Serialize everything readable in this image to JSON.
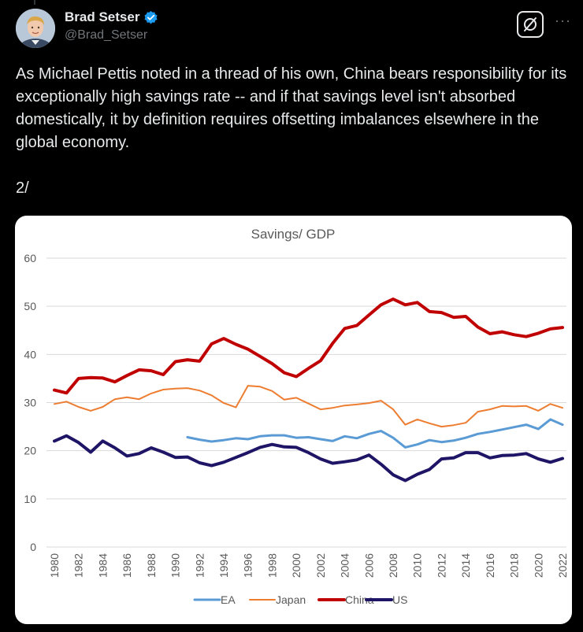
{
  "tweet": {
    "author_name": "Brad Setser",
    "author_handle": "@Brad_Setser",
    "text": "As Michael Pettis noted in a thread of his own, China bears responsibility for its exceptionally high savings rate -- and if that savings level isn't absorbed domestically, it by definition requires offsetting imbalances elsewhere in the global economy.\n\n2/",
    "verified_color": "#1d9bf0",
    "more_label": "···"
  },
  "chart_data": {
    "type": "line",
    "title": "Savings/ GDP",
    "xlabel": "",
    "ylabel": "",
    "ylim": [
      0,
      60
    ],
    "yticks": [
      0,
      10,
      20,
      30,
      40,
      50,
      60
    ],
    "xlim": [
      1980,
      2022
    ],
    "xticks": [
      "1980",
      "1982",
      "1984",
      "1986",
      "1988",
      "1990",
      "1992",
      "1994",
      "1996",
      "1998",
      "2000",
      "2002",
      "2004",
      "2006",
      "2008",
      "2010",
      "2012",
      "2014",
      "2016",
      "2018",
      "2020",
      "2022"
    ],
    "grid": true,
    "legend_position": "bottom",
    "series": [
      {
        "name": "EA",
        "color": "#5b9bd5",
        "width": 3,
        "x": [
          1991,
          1992,
          1993,
          1994,
          1995,
          1996,
          1997,
          1998,
          1999,
          2000,
          2001,
          2002,
          2003,
          2004,
          2005,
          2006,
          2007,
          2008,
          2009,
          2010,
          2011,
          2012,
          2013,
          2014,
          2015,
          2016,
          2017,
          2018,
          2019,
          2020,
          2021,
          2022
        ],
        "values": [
          22.8,
          22.3,
          21.9,
          22.2,
          22.6,
          22.4,
          23.0,
          23.2,
          23.2,
          22.7,
          22.8,
          22.4,
          22.0,
          23.0,
          22.6,
          23.5,
          24.1,
          22.7,
          20.7,
          21.3,
          22.2,
          21.8,
          22.1,
          22.7,
          23.5,
          23.9,
          24.4,
          24.9,
          25.4,
          24.5,
          26.5,
          25.4
        ]
      },
      {
        "name": "Japan",
        "color": "#ed7d31",
        "width": 2,
        "x": [
          1980,
          1981,
          1982,
          1983,
          1984,
          1985,
          1986,
          1987,
          1988,
          1989,
          1990,
          1991,
          1992,
          1993,
          1994,
          1995,
          1996,
          1997,
          1998,
          1999,
          2000,
          2001,
          2002,
          2003,
          2004,
          2005,
          2006,
          2007,
          2008,
          2009,
          2010,
          2011,
          2012,
          2013,
          2014,
          2015,
          2016,
          2017,
          2018,
          2019,
          2020,
          2021,
          2022
        ],
        "values": [
          29.7,
          30.2,
          29.1,
          28.3,
          29.1,
          30.7,
          31.1,
          30.7,
          31.9,
          32.7,
          32.9,
          33.0,
          32.5,
          31.5,
          29.9,
          29.0,
          33.5,
          33.3,
          32.4,
          30.6,
          31.0,
          29.8,
          28.6,
          28.9,
          29.4,
          29.6,
          29.9,
          30.4,
          28.6,
          25.4,
          26.5,
          25.7,
          25.0,
          25.3,
          25.8,
          28.1,
          28.6,
          29.3,
          29.2,
          29.3,
          28.3,
          29.7,
          28.9
        ]
      },
      {
        "name": "China",
        "color": "#c00000",
        "width": 4,
        "x": [
          1980,
          1981,
          1982,
          1983,
          1984,
          1985,
          1986,
          1987,
          1988,
          1989,
          1990,
          1991,
          1992,
          1993,
          1994,
          1995,
          1996,
          1997,
          1998,
          1999,
          2000,
          2001,
          2002,
          2003,
          2004,
          2005,
          2006,
          2007,
          2008,
          2009,
          2010,
          2011,
          2012,
          2013,
          2014,
          2015,
          2016,
          2017,
          2018,
          2019,
          2020,
          2021,
          2022
        ],
        "values": [
          32.6,
          32.0,
          35.0,
          35.2,
          35.1,
          34.3,
          35.6,
          36.8,
          36.6,
          35.8,
          38.5,
          38.9,
          38.6,
          42.2,
          43.3,
          42.1,
          41.1,
          39.6,
          38.1,
          36.2,
          35.4,
          37.1,
          38.7,
          42.3,
          45.4,
          46.0,
          48.2,
          50.3,
          51.5,
          50.3,
          50.8,
          48.9,
          48.7,
          47.7,
          47.9,
          45.7,
          44.3,
          44.7,
          44.1,
          43.7,
          44.4,
          45.3,
          45.6
        ]
      },
      {
        "name": "US",
        "color": "#1f1566",
        "width": 4,
        "x": [
          1980,
          1981,
          1982,
          1983,
          1984,
          1985,
          1986,
          1987,
          1988,
          1989,
          1990,
          1991,
          1992,
          1993,
          1994,
          1995,
          1996,
          1997,
          1998,
          1999,
          2000,
          2001,
          2002,
          2003,
          2004,
          2005,
          2006,
          2007,
          2008,
          2009,
          2010,
          2011,
          2012,
          2013,
          2014,
          2015,
          2016,
          2017,
          2018,
          2019,
          2020,
          2021,
          2022
        ],
        "values": [
          22.0,
          23.1,
          21.7,
          19.7,
          22.0,
          20.6,
          18.9,
          19.4,
          20.6,
          19.7,
          18.6,
          18.7,
          17.5,
          16.9,
          17.6,
          18.6,
          19.6,
          20.7,
          21.3,
          20.8,
          20.7,
          19.6,
          18.3,
          17.4,
          17.7,
          18.1,
          19.1,
          17.2,
          15.0,
          13.8,
          15.1,
          16.1,
          18.3,
          18.5,
          19.6,
          19.6,
          18.5,
          19.0,
          19.1,
          19.4,
          18.3,
          17.6,
          18.4
        ]
      }
    ]
  }
}
